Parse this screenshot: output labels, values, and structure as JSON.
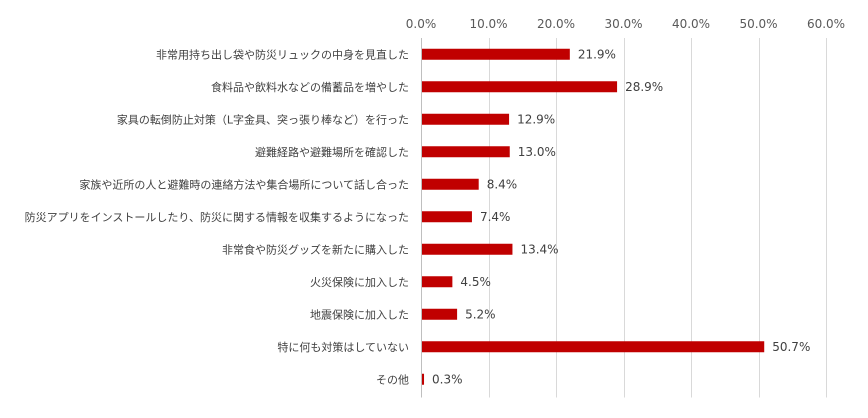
{
  "chart_data": {
    "type": "bar",
    "orientation": "horizontal",
    "categories": [
      "非常用持ち出し袋や防災リュックの中身を見直した",
      "食料品や飲料水などの備蓄品を増やした",
      "家具の転倒防止対策（L字金具、突っ張り棒など）を行った",
      "避難経路や避難場所を確認した",
      "家族や近所の人と避難時の連絡方法や集合場所について話し合った",
      "防災アプリをインストールしたり、防災に関する情報を収集するようになった",
      "非常食や防災グッズを新たに購入した",
      "火災保険に加入した",
      "地震保険に加入した",
      "特に何も対策はしていない",
      "その他"
    ],
    "values": [
      21.9,
      28.9,
      12.9,
      13.0,
      8.4,
      7.4,
      13.4,
      4.5,
      5.2,
      50.7,
      0.3
    ],
    "value_labels": [
      "21.9%",
      "28.9%",
      "12.9%",
      "13.0%",
      "8.4%",
      "7.4%",
      "13.4%",
      "4.5%",
      "5.2%",
      "50.7%",
      "0.3%"
    ],
    "x_ticks": [
      "0.0%",
      "10.0%",
      "20.0%",
      "30.0%",
      "40.0%",
      "50.0%",
      "60.0%"
    ],
    "xlim": [
      0,
      60
    ],
    "axis_position": "top",
    "grid": true,
    "legend": "none",
    "bar_color": "#c00000",
    "title": "",
    "xlabel": "",
    "ylabel": ""
  }
}
